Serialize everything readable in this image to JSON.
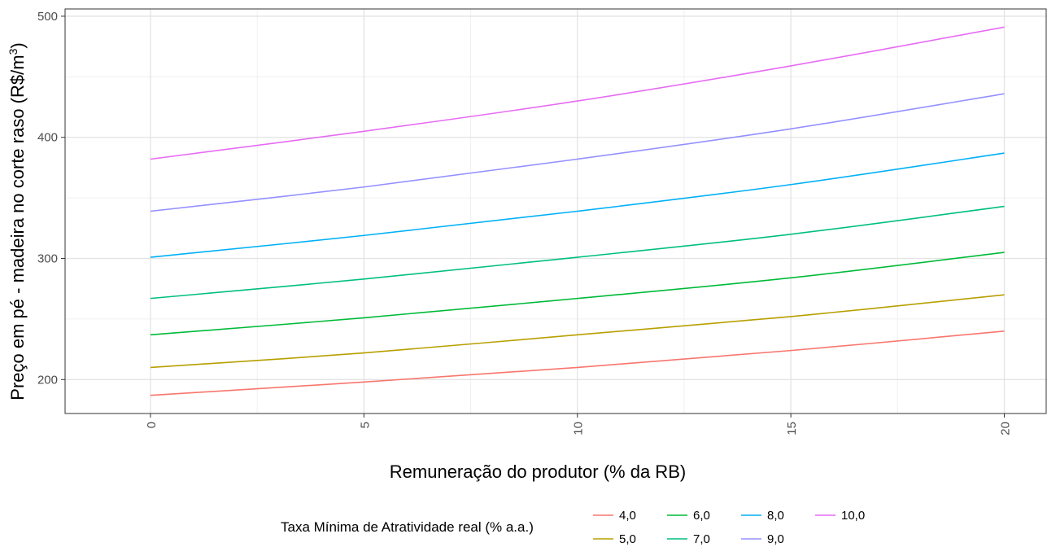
{
  "chart_data": {
    "type": "line",
    "xlabel": "Remuneração do produtor (% da RB)",
    "ylabel_main": "Preço em pé - madeira no corte raso (R$/m",
    "ylabel_sup": "3",
    "ylabel_close": ")",
    "xlim": [
      -2,
      21
    ],
    "ylim": [
      172,
      506
    ],
    "x_ticks": [
      0,
      5,
      10,
      15,
      20
    ],
    "x_tick_labels": [
      "0",
      "5",
      "10",
      "15",
      "20"
    ],
    "y_ticks": [
      200,
      300,
      400,
      500
    ],
    "y_tick_labels": [
      "200",
      "300",
      "400",
      "500"
    ],
    "x_minor_grid": [
      2.5,
      7.5,
      12.5,
      17.5
    ],
    "y_minor_grid": [
      250,
      350,
      450
    ],
    "grid": true,
    "legend": {
      "title": "Taxa Mínima de Atratividade real (% a.a.)",
      "position": "bottom"
    },
    "x": [
      0,
      5,
      10,
      15,
      20
    ],
    "series": [
      {
        "name": "4,0",
        "color": "#F8766D",
        "values": [
          187,
          198,
          210,
          224,
          240
        ]
      },
      {
        "name": "5,0",
        "color": "#B79F00",
        "values": [
          210,
          222,
          237,
          252,
          270
        ]
      },
      {
        "name": "6,0",
        "color": "#00BA38",
        "values": [
          237,
          251,
          267,
          284,
          305
        ]
      },
      {
        "name": "7,0",
        "color": "#00BF7D",
        "values": [
          267,
          283,
          301,
          320,
          343
        ]
      },
      {
        "name": "8,0",
        "color": "#00B0F6",
        "values": [
          301,
          319,
          339,
          361,
          387
        ]
      },
      {
        "name": "9,0",
        "color": "#9590FF",
        "values": [
          339,
          359,
          382,
          407,
          436
        ]
      },
      {
        "name": "10,0",
        "color": "#E76BF3",
        "values": [
          382,
          405,
          430,
          459,
          491
        ]
      }
    ]
  }
}
